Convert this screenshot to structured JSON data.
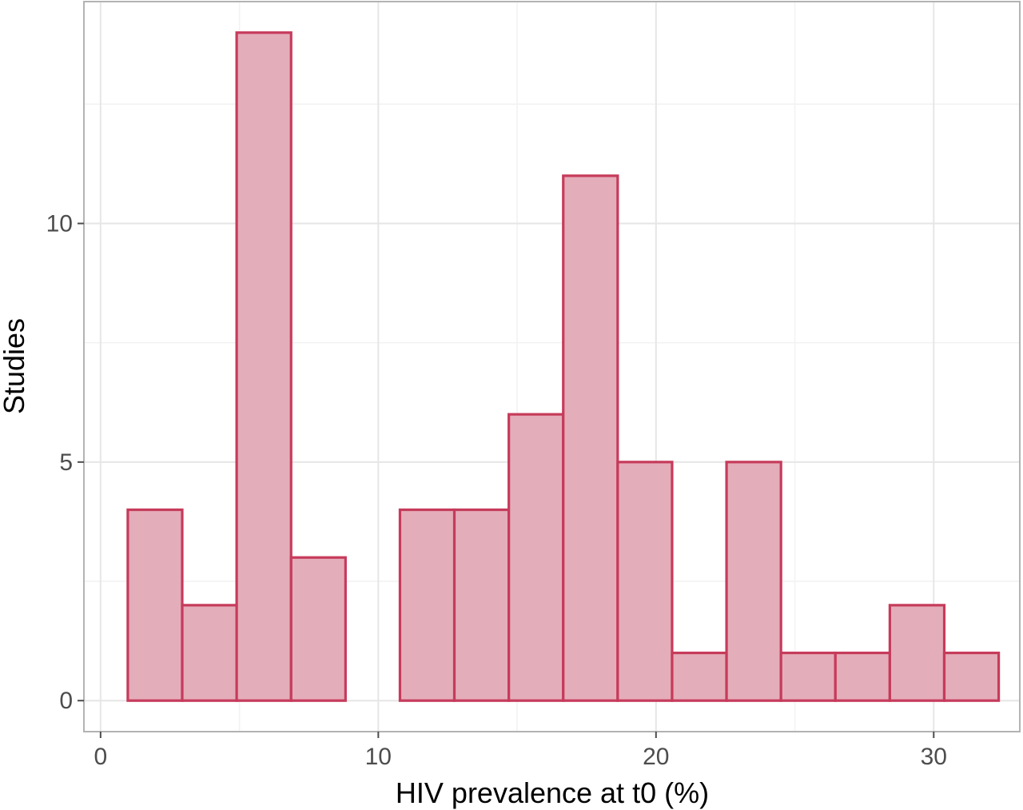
{
  "chart_data": {
    "type": "bar",
    "histogram": true,
    "xlabel": "HIV prevalence at t0 (%)",
    "ylabel": "Studies",
    "xlim": [
      -0.6,
      33.1
    ],
    "ylim": [
      -0.65,
      14.65
    ],
    "x_ticks": [
      0,
      10,
      20,
      30
    ],
    "y_ticks": [
      0,
      5,
      10
    ],
    "grid": true,
    "colors": {
      "fill": "#e4adba",
      "outline": "#c63b5b"
    },
    "bins": [
      {
        "x0": 0.98,
        "x1": 2.94,
        "count": 4
      },
      {
        "x0": 2.94,
        "x1": 4.9,
        "count": 2
      },
      {
        "x0": 4.9,
        "x1": 6.86,
        "count": 14
      },
      {
        "x0": 6.86,
        "x1": 8.82,
        "count": 3
      },
      {
        "x0": 8.82,
        "x1": 10.78,
        "count": 0
      },
      {
        "x0": 10.78,
        "x1": 12.74,
        "count": 4
      },
      {
        "x0": 12.74,
        "x1": 14.7,
        "count": 4
      },
      {
        "x0": 14.7,
        "x1": 16.66,
        "count": 6
      },
      {
        "x0": 16.66,
        "x1": 18.62,
        "count": 11
      },
      {
        "x0": 18.62,
        "x1": 20.58,
        "count": 5
      },
      {
        "x0": 20.58,
        "x1": 22.54,
        "count": 1
      },
      {
        "x0": 22.54,
        "x1": 24.5,
        "count": 5
      },
      {
        "x0": 24.5,
        "x1": 26.46,
        "count": 1
      },
      {
        "x0": 26.46,
        "x1": 28.42,
        "count": 1
      },
      {
        "x0": 28.42,
        "x1": 30.38,
        "count": 2
      },
      {
        "x0": 30.38,
        "x1": 32.34,
        "count": 1
      }
    ]
  }
}
